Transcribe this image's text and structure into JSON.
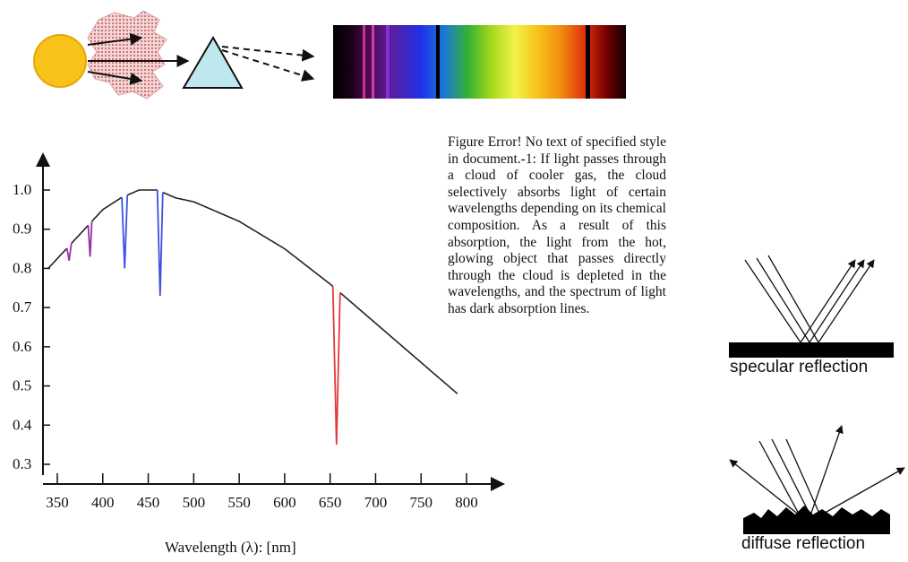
{
  "caption": "Figure Error! No text of specified style in document.-1: If light passes through a cloud of cooler gas, the cloud selectively absorbs light of certain wavelengths depending on its chemical composition. As a result of this absorption, the light from the hot, glowing object that passes directly through the cloud is depleted in the wavelengths, and the spectrum of light has dark absorption lines.",
  "reflection": {
    "specular_label": "specular reflection",
    "diffuse_label": "diffuse reflection"
  },
  "colors": {
    "sun": "#f7c21a",
    "cloud": "#d98a8a",
    "prism": "#bfe8ee",
    "curve": "#222222",
    "absorption_purple": "#9b2fa8",
    "absorption_blue": "#3a52e0",
    "absorption_red": "#e33a3a"
  },
  "chart_data": {
    "type": "line",
    "xlabel": "Wavelength (λ): [nm]",
    "ylabel": "",
    "xlim": [
      340,
      800
    ],
    "ylim": [
      0.3,
      1.0
    ],
    "x_ticks": [
      "350",
      "400",
      "450",
      "500",
      "550",
      "600",
      "650",
      "700",
      "750",
      "800"
    ],
    "y_ticks": [
      "1.0",
      "0.9",
      "0.8",
      "0.7",
      "0.6",
      "0.5",
      "0.4",
      "0.3"
    ],
    "continuum": {
      "x": [
        340,
        360,
        380,
        400,
        420,
        440,
        460,
        480,
        500,
        550,
        600,
        650,
        700,
        750,
        790
      ],
      "y": [
        0.8,
        0.85,
        0.9,
        0.95,
        0.98,
        1.0,
        1.0,
        0.98,
        0.97,
        0.92,
        0.85,
        0.76,
        0.66,
        0.56,
        0.48
      ]
    },
    "absorption_lines": [
      {
        "center": 363,
        "width": 5,
        "depth": 0.82,
        "color": "purple"
      },
      {
        "center": 386,
        "width": 4,
        "depth": 0.83,
        "color": "purple"
      },
      {
        "center": 424,
        "width": 6,
        "depth": 0.8,
        "color": "blue"
      },
      {
        "center": 463,
        "width": 6,
        "depth": 0.73,
        "color": "blue"
      },
      {
        "center": 657,
        "width": 8,
        "depth": 0.35,
        "color": "red"
      }
    ]
  }
}
